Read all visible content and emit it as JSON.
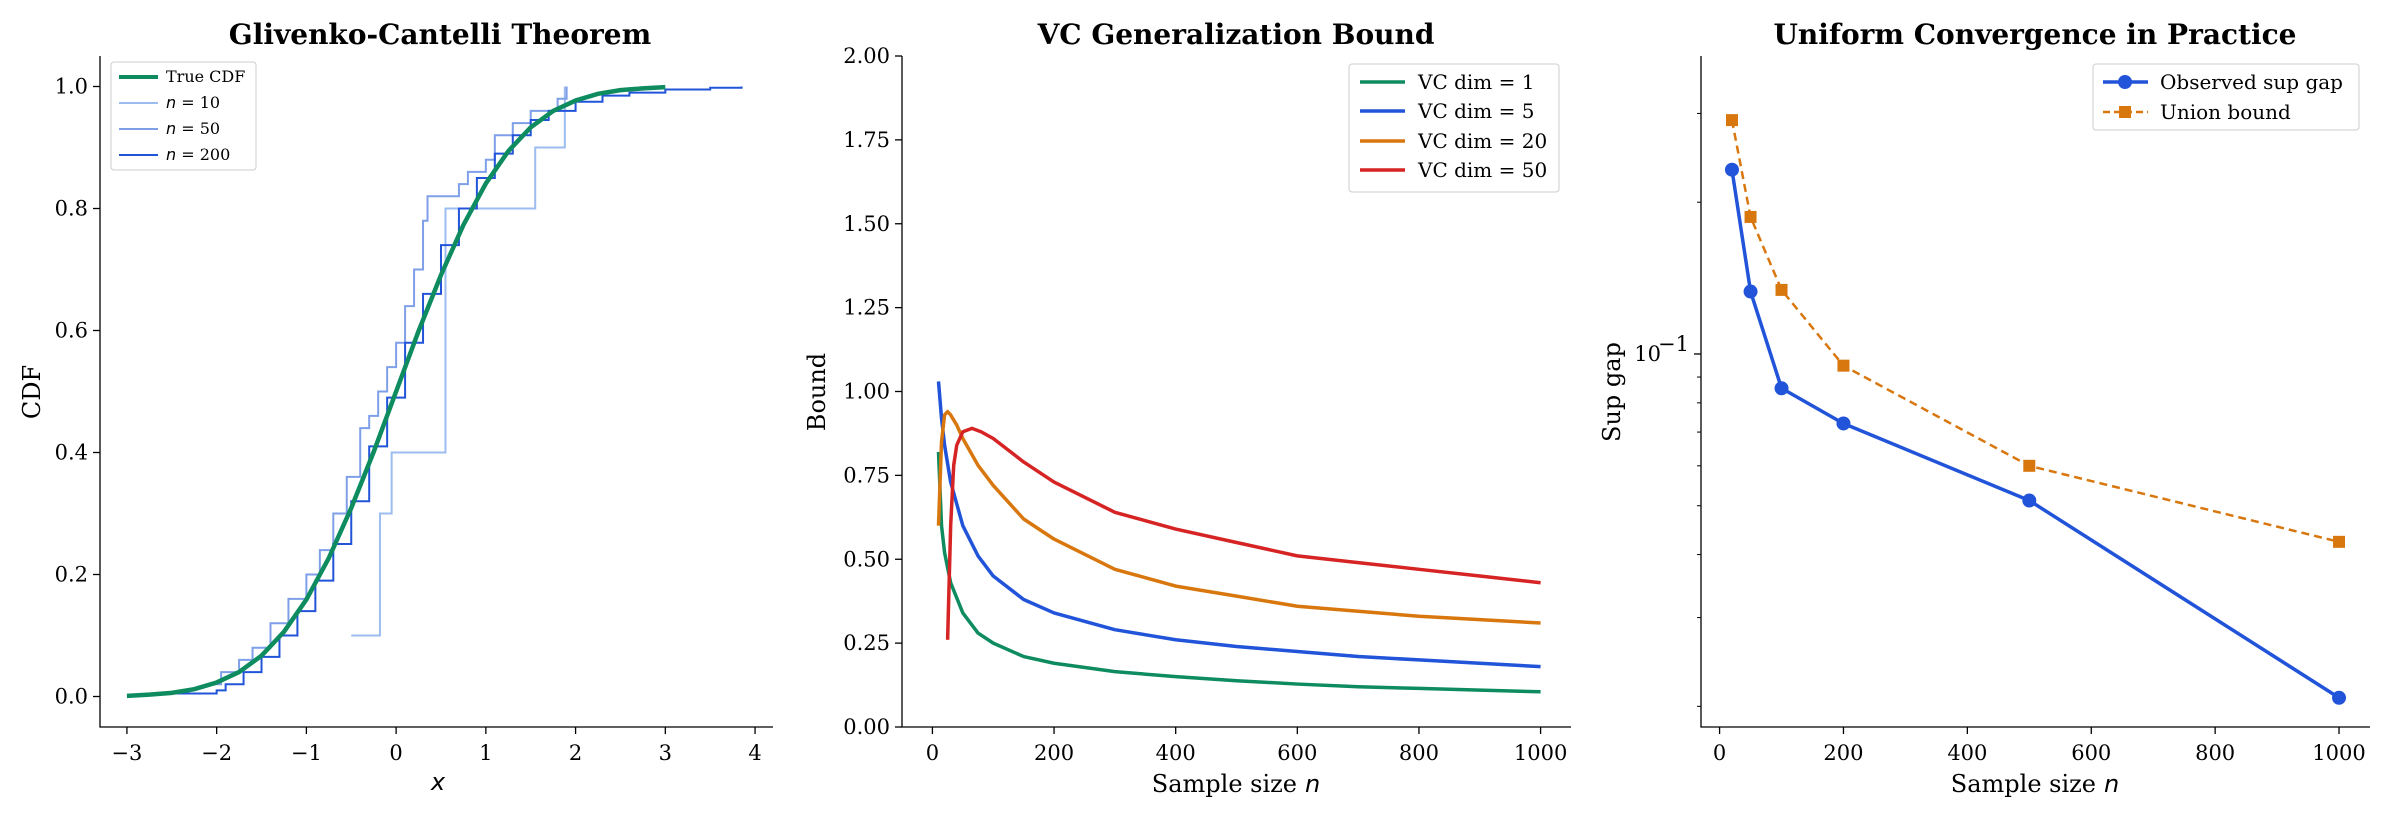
{
  "chart_data": [
    {
      "type": "line",
      "title": "Glivenko-Cantelli Theorem",
      "xlabel": "x",
      "ylabel": "CDF",
      "xlim": [
        -3.3,
        4.2
      ],
      "ylim": [
        -0.05,
        1.05
      ],
      "xticks": [
        "−3",
        "−2",
        "−1",
        "0",
        "1",
        "2",
        "3",
        "4"
      ],
      "yticks": [
        "0.0",
        "0.2",
        "0.4",
        "0.6",
        "0.8",
        "1.0"
      ],
      "legend_position": "top-left",
      "grid": false,
      "series": [
        {
          "name": "True CDF",
          "color": "#0e8c5f",
          "style": "smooth",
          "x": [
            -3.0,
            -2.75,
            -2.5,
            -2.25,
            -2.0,
            -1.75,
            -1.5,
            -1.25,
            -1.0,
            -0.75,
            -0.5,
            -0.25,
            0.0,
            0.25,
            0.5,
            0.75,
            1.0,
            1.25,
            1.5,
            1.75,
            2.0,
            2.25,
            2.5,
            2.75,
            3.0
          ],
          "y": [
            0.001,
            0.003,
            0.006,
            0.012,
            0.023,
            0.04,
            0.067,
            0.106,
            0.159,
            0.227,
            0.309,
            0.401,
            0.5,
            0.599,
            0.691,
            0.773,
            0.841,
            0.894,
            0.933,
            0.96,
            0.977,
            0.988,
            0.994,
            0.997,
            0.999
          ]
        },
        {
          "name_prefix": "n",
          "name_suffix": " = 10",
          "color": "#9dbcf0",
          "style": "step",
          "x": [
            -0.5,
            -0.22,
            -0.18,
            -0.05,
            0.5,
            0.55,
            1.52,
            1.55,
            1.82,
            1.88
          ],
          "y": [
            0.1,
            0.1,
            0.3,
            0.4,
            0.4,
            0.8,
            0.8,
            0.9,
            0.9,
            1.0
          ]
        },
        {
          "name_prefix": "n",
          "name_suffix": " = 50",
          "color": "#7f9fe8",
          "style": "step",
          "x": [
            -2.1,
            -1.95,
            -1.75,
            -1.6,
            -1.4,
            -1.2,
            -1.0,
            -0.85,
            -0.7,
            -0.55,
            -0.4,
            -0.3,
            -0.2,
            -0.1,
            0.0,
            0.1,
            0.2,
            0.3,
            0.35,
            0.5,
            0.7,
            0.8,
            1.0,
            1.1,
            1.3,
            1.5,
            1.8,
            1.9
          ],
          "y": [
            0.02,
            0.04,
            0.06,
            0.08,
            0.12,
            0.16,
            0.2,
            0.24,
            0.3,
            0.36,
            0.44,
            0.46,
            0.5,
            0.54,
            0.58,
            0.64,
            0.7,
            0.78,
            0.82,
            0.82,
            0.84,
            0.86,
            0.88,
            0.92,
            0.94,
            0.96,
            0.98,
            1.0
          ]
        },
        {
          "name_prefix": "n",
          "name_suffix": " = 200",
          "color": "#2154d9",
          "style": "step",
          "x": [
            -2.5,
            -2.0,
            -1.9,
            -1.7,
            -1.5,
            -1.3,
            -1.1,
            -0.9,
            -0.7,
            -0.5,
            -0.3,
            -0.1,
            0.1,
            0.3,
            0.5,
            0.7,
            0.9,
            1.1,
            1.3,
            1.5,
            1.7,
            2.0,
            2.3,
            2.6,
            3.0,
            3.5,
            3.85
          ],
          "y": [
            0.005,
            0.01,
            0.02,
            0.04,
            0.065,
            0.1,
            0.14,
            0.19,
            0.25,
            0.32,
            0.41,
            0.49,
            0.58,
            0.66,
            0.74,
            0.8,
            0.85,
            0.89,
            0.92,
            0.945,
            0.96,
            0.975,
            0.985,
            0.99,
            0.995,
            0.998,
            1.0
          ]
        }
      ]
    },
    {
      "type": "line",
      "title": "VC Generalization Bound",
      "xlabel": "Sample size",
      "xlabel_var": "n",
      "ylabel": "Bound",
      "xlim": [
        -50,
        1050
      ],
      "ylim": [
        0,
        2.0
      ],
      "xticks_values": [
        0,
        200,
        400,
        600,
        800,
        1000
      ],
      "xticks": [
        "0",
        "200",
        "400",
        "600",
        "800",
        "1000"
      ],
      "yticks_values": [
        0.0,
        0.25,
        0.5,
        0.75,
        1.0,
        1.25,
        1.5,
        1.75,
        2.0
      ],
      "yticks": [
        "0.00",
        "0.25",
        "0.50",
        "0.75",
        "1.00",
        "1.25",
        "1.50",
        "1.75",
        "2.00"
      ],
      "legend_position": "top-right",
      "grid": false,
      "series": [
        {
          "name": "VC dim = 1",
          "color": "#0e8c5f",
          "x": [
            10,
            15,
            20,
            30,
            50,
            75,
            100,
            150,
            200,
            300,
            400,
            500,
            600,
            700,
            800,
            900,
            1000
          ],
          "y": [
            0.82,
            0.6,
            0.52,
            0.43,
            0.34,
            0.28,
            0.25,
            0.21,
            0.19,
            0.165,
            0.15,
            0.138,
            0.128,
            0.12,
            0.115,
            0.11,
            0.105
          ]
        },
        {
          "name": "VC dim = 5",
          "color": "#2154d9",
          "x": [
            10,
            15,
            20,
            30,
            50,
            75,
            100,
            150,
            200,
            300,
            400,
            500,
            600,
            700,
            800,
            900,
            1000
          ],
          "y": [
            1.03,
            0.92,
            0.84,
            0.73,
            0.6,
            0.51,
            0.45,
            0.38,
            0.34,
            0.29,
            0.26,
            0.24,
            0.225,
            0.21,
            0.2,
            0.19,
            0.18
          ]
        },
        {
          "name": "VC dim = 20",
          "color": "#d9770f",
          "x": [
            10,
            15,
            20,
            25,
            30,
            40,
            50,
            75,
            100,
            150,
            200,
            300,
            400,
            500,
            600,
            700,
            800,
            900,
            1000
          ],
          "y": [
            0.6,
            0.85,
            0.93,
            0.94,
            0.93,
            0.9,
            0.86,
            0.78,
            0.72,
            0.62,
            0.56,
            0.47,
            0.42,
            0.39,
            0.36,
            0.345,
            0.33,
            0.32,
            0.31
          ]
        },
        {
          "name": "VC dim = 50",
          "color": "#d62424",
          "x": [
            25,
            30,
            35,
            40,
            50,
            65,
            80,
            100,
            150,
            200,
            300,
            400,
            500,
            600,
            700,
            800,
            900,
            1000
          ],
          "y": [
            0.26,
            0.6,
            0.78,
            0.84,
            0.88,
            0.89,
            0.88,
            0.86,
            0.79,
            0.73,
            0.64,
            0.59,
            0.55,
            0.51,
            0.49,
            0.47,
            0.45,
            0.43
          ]
        }
      ]
    },
    {
      "type": "line",
      "title": "Uniform Convergence in Practice",
      "xlabel": "Sample size",
      "xlabel_var": "n",
      "ylabel": "Sup gap",
      "yscale": "log",
      "xlim": [
        -30,
        1050
      ],
      "ylim": [
        0.0182,
        0.39
      ],
      "xticks_values": [
        0,
        200,
        400,
        600,
        800,
        1000
      ],
      "xticks": [
        "0",
        "200",
        "400",
        "600",
        "800",
        "1000"
      ],
      "ytick_major": {
        "value": 0.1,
        "base": "10",
        "exp": "−1"
      },
      "yticks_minor": [
        0.02,
        0.03,
        0.04,
        0.05,
        0.06,
        0.07,
        0.08,
        0.09,
        0.2,
        0.3
      ],
      "legend_position": "top-right",
      "grid": false,
      "series": [
        {
          "name": "Observed sup gap",
          "color": "#2154d9",
          "marker": "circle",
          "dash": "solid",
          "x": [
            20,
            50,
            100,
            200,
            500,
            1000
          ],
          "y": [
            0.232,
            0.133,
            0.0855,
            0.0728,
            0.0512,
            0.0208
          ]
        },
        {
          "name": "Union bound",
          "color": "#d9770f",
          "marker": "square",
          "dash": "dashed",
          "x": [
            20,
            50,
            100,
            200,
            500,
            1000
          ],
          "y": [
            0.291,
            0.187,
            0.134,
            0.0948,
            0.06,
            0.0424
          ]
        }
      ]
    }
  ]
}
